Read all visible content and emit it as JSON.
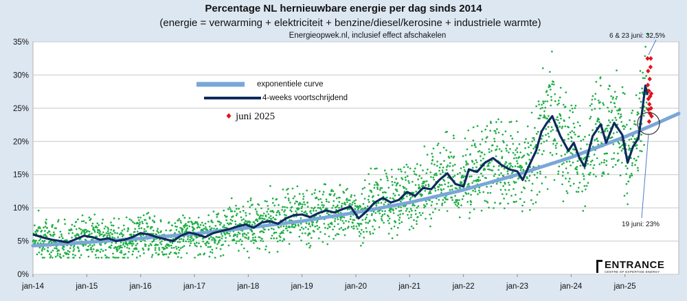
{
  "chart_data": {
    "type": "line",
    "title": "Percentage NL hernieuwbare energie per dag sinds 2014",
    "subtitle": "(energie = verwarming + elektriciteit + benzine/diesel/kerosine + industriele warmte)",
    "source_note": "Energieopwek.nl, inclusief effect afschakelen",
    "y_ticks": [
      "0%",
      "5%",
      "10%",
      "15%",
      "20%",
      "25%",
      "30%",
      "35%"
    ],
    "x_ticks": [
      "jan-14",
      "jan-15",
      "jan-16",
      "jan-17",
      "jan-18",
      "jan-19",
      "jan-20",
      "jan-21",
      "jan-22",
      "jan-23",
      "jan-24",
      "jan-25"
    ],
    "ylim": [
      0,
      35
    ],
    "xlim": [
      2014.0,
      2026.0
    ],
    "grid": "horizontal",
    "legend_position": "top-left",
    "series": [
      {
        "name": "exponentiele curve",
        "style": "curve",
        "color": "#7aa6d8",
        "x": [
          2014.0,
          2015.0,
          2016.0,
          2017.0,
          2018.0,
          2019.0,
          2020.0,
          2021.0,
          2022.0,
          2023.0,
          2024.0,
          2025.0,
          2025.5,
          2026.0
        ],
        "y": [
          4.3,
          4.8,
          5.4,
          6.1,
          7.0,
          8.0,
          9.3,
          10.8,
          12.7,
          15.0,
          17.6,
          20.7,
          22.4,
          24.2
        ]
      },
      {
        "name": "4-weeks voortschrijdend",
        "style": "line",
        "color": "#0d2a5c",
        "x": [
          2014.0,
          2014.08,
          2014.2,
          2014.35,
          2014.5,
          2014.65,
          2014.8,
          2014.95,
          2015.1,
          2015.25,
          2015.4,
          2015.55,
          2015.7,
          2015.85,
          2016.0,
          2016.15,
          2016.3,
          2016.45,
          2016.6,
          2016.75,
          2016.9,
          2017.05,
          2017.2,
          2017.35,
          2017.5,
          2017.65,
          2017.8,
          2017.95,
          2018.1,
          2018.25,
          2018.4,
          2018.55,
          2018.7,
          2018.85,
          2019.0,
          2019.15,
          2019.3,
          2019.45,
          2019.6,
          2019.75,
          2019.9,
          2020.05,
          2020.2,
          2020.35,
          2020.5,
          2020.65,
          2020.8,
          2020.95,
          2021.1,
          2021.25,
          2021.4,
          2021.55,
          2021.7,
          2021.85,
          2022.0,
          2022.1,
          2022.25,
          2022.4,
          2022.55,
          2022.7,
          2022.85,
          2023.0,
          2023.1,
          2023.25,
          2023.35,
          2023.45,
          2023.55,
          2023.65,
          2023.8,
          2023.95,
          2024.05,
          2024.15,
          2024.25,
          2024.4,
          2024.55,
          2024.65,
          2024.8,
          2024.95,
          2025.05,
          2025.15,
          2025.25,
          2025.32,
          2025.38,
          2025.42
        ],
        "y": [
          6.0,
          5.8,
          5.5,
          5.2,
          5.0,
          4.8,
          5.3,
          5.8,
          5.6,
          5.2,
          5.4,
          5.0,
          5.2,
          5.6,
          6.2,
          6.0,
          5.6,
          5.3,
          5.0,
          5.8,
          6.3,
          6.0,
          5.6,
          6.2,
          6.5,
          6.8,
          7.2,
          7.5,
          7.0,
          7.8,
          8.0,
          7.6,
          8.4,
          8.9,
          9.0,
          8.6,
          9.2,
          9.6,
          9.3,
          9.8,
          10.2,
          8.4,
          9.5,
          10.8,
          11.5,
          10.8,
          11.2,
          12.4,
          11.8,
          13.0,
          12.8,
          14.2,
          15.2,
          13.6,
          13.2,
          15.8,
          15.4,
          16.8,
          17.5,
          16.5,
          15.8,
          15.5,
          14.2,
          16.9,
          18.6,
          21.5,
          22.8,
          23.8,
          20.8,
          18.6,
          19.8,
          17.6,
          16.2,
          20.8,
          22.6,
          19.8,
          22.8,
          21.0,
          16.8,
          19.2,
          20.5,
          24.5,
          28.4,
          27.0
        ]
      },
      {
        "name": "juni 2025",
        "style": "markers",
        "color": "#e0141e",
        "x": [
          2025.42,
          2025.425,
          2025.43,
          2025.435,
          2025.44,
          2025.445,
          2025.45,
          2025.455,
          2025.46,
          2025.465,
          2025.47,
          2025.475,
          2025.48,
          2025.485,
          2025.49,
          2025.495
        ],
        "y": [
          32.5,
          28.5,
          30.6,
          26.4,
          24.8,
          27.6,
          23.0,
          25.6,
          29.4,
          24.2,
          26.8,
          31.2,
          32.5,
          25.0,
          27.2,
          23.8
        ]
      }
    ],
    "scatter_band": {
      "name": "daily values",
      "color": "#1fae46",
      "note": "daily green dots scattered around the moving average"
    },
    "annotations": [
      {
        "text": "6 & 23 juni: 32,5%",
        "x": 2025.45,
        "y": 32.5
      },
      {
        "text": "19 juni: 23%",
        "x": 2025.46,
        "y": 23.0
      }
    ],
    "logo": {
      "name": "ENTRANCE",
      "tagline": "CENTRE OF EXPERTISE ENERGY"
    }
  }
}
